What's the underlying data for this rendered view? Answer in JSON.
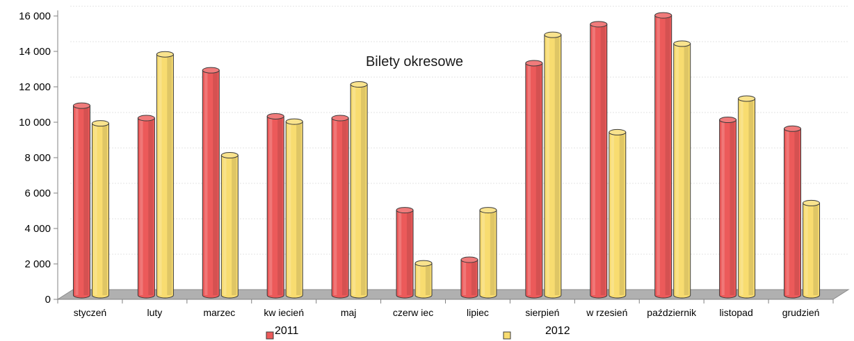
{
  "chart_data": {
    "type": "bar",
    "title": "Bilety okresowe",
    "xlabel": "",
    "ylabel": "",
    "ylim": [
      0,
      16000
    ],
    "yticks": [
      0,
      2000,
      4000,
      6000,
      8000,
      10000,
      12000,
      14000,
      16000
    ],
    "ytick_labels": [
      "0",
      "2 000",
      "4 000",
      "6 000",
      "8 000",
      "10 000",
      "12 000",
      "14 000",
      "16 000"
    ],
    "grid": true,
    "legend_position": "bottom",
    "categories": [
      "styczeń",
      "luty",
      "marzec",
      "kw iecień",
      "maj",
      "czerw iec",
      "lipiec",
      "sierpień",
      "w rzesień",
      "październik",
      "listopad",
      "grudzień"
    ],
    "series": [
      {
        "name": "2011",
        "color": "#ec5a5a",
        "values": [
          10700,
          10000,
          12700,
          10100,
          10000,
          4800,
          2000,
          13100,
          15300,
          15800,
          9900,
          9400
        ]
      },
      {
        "name": "2012",
        "color": "#f8dc70",
        "values": [
          9700,
          13600,
          7900,
          9800,
          11900,
          1800,
          4800,
          14700,
          9200,
          14200,
          11100,
          5200
        ]
      }
    ]
  }
}
